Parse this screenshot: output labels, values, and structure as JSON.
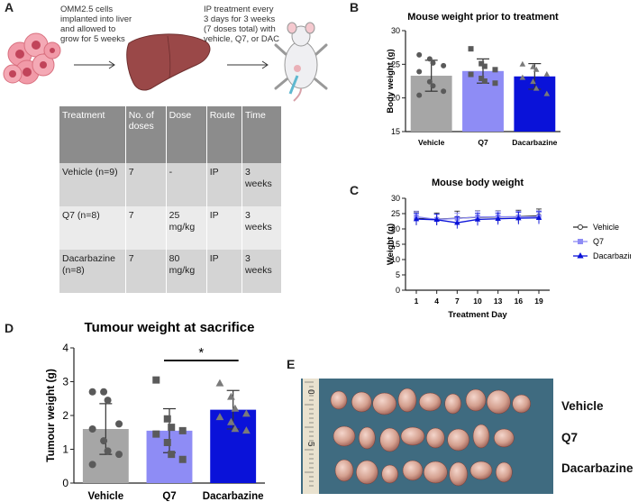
{
  "panels": {
    "a": "A",
    "b": "B",
    "c": "C",
    "d": "D",
    "e": "E"
  },
  "protocol": {
    "step1": [
      "OMM2.5 cells",
      "implanted into liver",
      "and allowed to",
      "grow for 5 weeks"
    ],
    "step2": [
      "IP treatment every",
      "3 days for 3 weeks",
      "(7 doses total) with",
      "vehicle, Q7, or DAC"
    ]
  },
  "table": {
    "headers": [
      "Treatment",
      "No. of doses",
      "Dose",
      "Route",
      "Time"
    ],
    "rows": [
      [
        "Vehicle (n=9)",
        "7",
        "-",
        "IP",
        "3 weeks"
      ],
      [
        "Q7 (n=8)",
        "7",
        "25 mg/kg",
        "IP",
        "3 weeks"
      ],
      [
        "Dacarbazine (n=8)",
        "7",
        "80 mg/kg",
        "IP",
        "3 weeks"
      ]
    ]
  },
  "colors": {
    "vehicle": "#a6a6a6",
    "q7": "#8e8cf5",
    "dacarbazine": "#0a12d9",
    "dark": "#555555"
  },
  "chart_data": [
    {
      "id": "B",
      "type": "bar",
      "title": "Mouse weight prior to treatment",
      "xlabel": "",
      "ylabel": "Body weight (g)",
      "ylim": [
        15,
        30
      ],
      "yticks": [
        15,
        20,
        25,
        30
      ],
      "categories": [
        "Vehicle",
        "Q7",
        "Dacarbazine"
      ],
      "values": [
        23.3,
        24.0,
        23.2
      ],
      "errors": [
        2.3,
        1.8,
        1.9
      ],
      "points": [
        [
          26.4,
          25.8,
          25.2,
          24.8,
          23.9,
          22.4,
          21.8,
          21.0,
          20.4
        ],
        [
          27.3,
          25.1,
          24.7,
          24.2,
          23.5,
          22.9,
          22.5,
          22.2
        ],
        [
          25.0,
          24.6,
          24.2,
          23.5,
          23.0,
          22.4,
          21.4,
          20.6
        ]
      ]
    },
    {
      "id": "C",
      "type": "line",
      "title": "Mouse body weight",
      "xlabel": "Treatment Day",
      "ylabel": "Weight (g)",
      "ylim": [
        0,
        30
      ],
      "yticks": [
        0,
        5,
        10,
        15,
        20,
        25,
        30
      ],
      "x": [
        1,
        4,
        7,
        10,
        13,
        16,
        19
      ],
      "legend": "right",
      "series": [
        {
          "name": "Vehicle",
          "values": [
            23.4,
            23.2,
            23.5,
            23.8,
            23.9,
            24.0,
            24.3
          ],
          "errors": [
            2.2,
            2.0,
            2.3,
            2.1,
            2.0,
            2.1,
            2.2
          ]
        },
        {
          "name": "Q7",
          "values": [
            24.0,
            23.1,
            23.4,
            23.9,
            24.0,
            23.9,
            24.0
          ],
          "errors": [
            1.8,
            1.7,
            1.8,
            1.9,
            1.8,
            1.9,
            1.9
          ]
        },
        {
          "name": "Dacarbazine",
          "values": [
            23.2,
            23.0,
            22.0,
            23.1,
            23.3,
            23.5,
            23.6
          ],
          "errors": [
            1.9,
            1.8,
            1.9,
            2.0,
            1.9,
            2.0,
            2.0
          ]
        }
      ]
    },
    {
      "id": "D",
      "type": "bar",
      "title": "Tumour weight at sacrifice",
      "xlabel": "",
      "ylabel": "Tumour weight (g)",
      "ylim": [
        0,
        4
      ],
      "yticks": [
        0,
        1,
        2,
        3,
        4
      ],
      "categories": [
        "Vehicle",
        "Q7",
        "Dacarbazine"
      ],
      "values": [
        1.6,
        1.55,
        2.17
      ],
      "errors": [
        0.75,
        0.65,
        0.57
      ],
      "points": [
        [
          2.7,
          2.7,
          2.45,
          1.75,
          1.6,
          1.25,
          0.95,
          0.85,
          0.55
        ],
        [
          3.05,
          1.9,
          1.65,
          1.55,
          1.45,
          1.2,
          0.85,
          0.7
        ],
        [
          2.95,
          2.55,
          2.2,
          2.05,
          1.95,
          1.8,
          1.6,
          1.55
        ]
      ],
      "significance": {
        "from": "Q7",
        "to": "Dacarbazine",
        "label": "*"
      }
    }
  ],
  "photo": {
    "ruler_marks": [
      "0",
      "5"
    ],
    "rows": [
      "Vehicle",
      "Q7",
      "Dacarbazine"
    ],
    "tumour_counts": [
      9,
      8,
      8
    ]
  }
}
